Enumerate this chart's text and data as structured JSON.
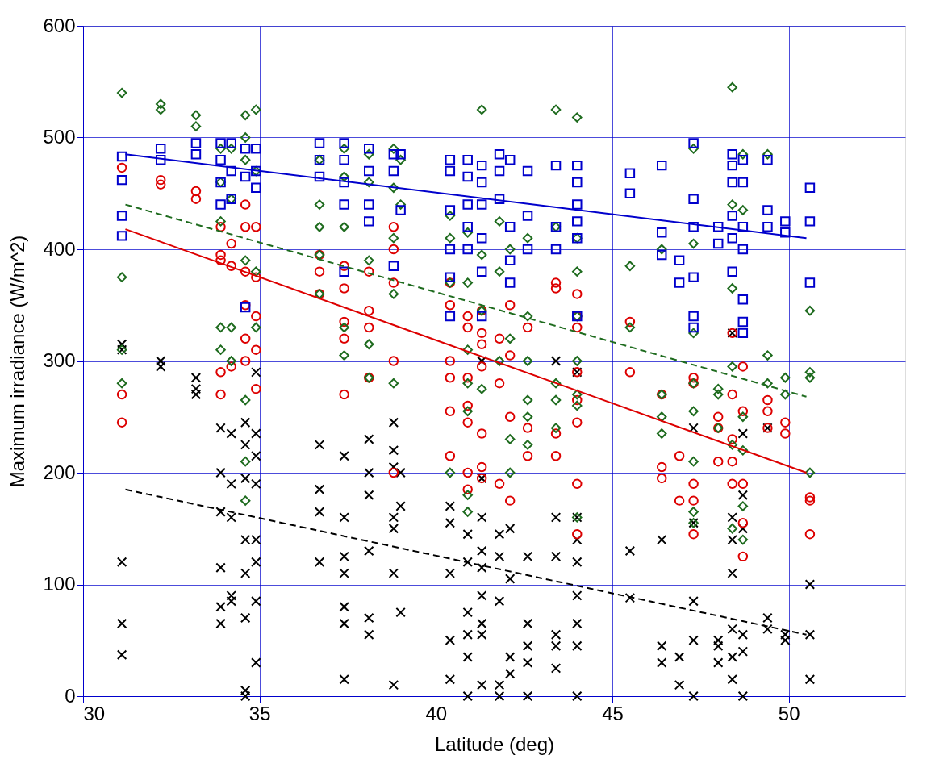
{
  "chart_data": {
    "type": "scatter",
    "xlabel": "Latitude (deg)",
    "ylabel": "Maximum irradiance (W/m^2)",
    "xlim": [
      30,
      53.3
    ],
    "xticks": [
      30,
      35,
      40,
      45,
      50
    ],
    "ylim": [
      0,
      600
    ],
    "yticks": [
      0,
      100,
      200,
      300,
      400,
      500,
      600
    ],
    "grid": true,
    "series": [
      {
        "color": "#0000cc",
        "marker": "square",
        "x": [
          31.1,
          31.1,
          31.1,
          31.1,
          32.2,
          32.2,
          33.2,
          33.2,
          33.9,
          33.9,
          33.9,
          33.9,
          34.2,
          34.2,
          34.2,
          34.6,
          34.6,
          34.6,
          34.9,
          34.9,
          34.9,
          36.7,
          36.7,
          36.7,
          37.4,
          37.4,
          37.4,
          37.4,
          37.4,
          38.1,
          38.1,
          38.1,
          38.1,
          38.8,
          38.8,
          38.8,
          39.0,
          39.0,
          40.4,
          40.4,
          40.4,
          40.4,
          40.4,
          40.4,
          40.9,
          40.9,
          40.9,
          40.9,
          40.9,
          41.3,
          41.3,
          41.3,
          41.3,
          41.3,
          41.3,
          41.8,
          41.8,
          41.8,
          42.1,
          42.1,
          42.1,
          42.1,
          42.6,
          42.6,
          42.6,
          43.4,
          43.4,
          43.4,
          44.0,
          44.0,
          44.0,
          44.0,
          44.0,
          44.0,
          45.5,
          45.5,
          46.4,
          46.4,
          46.4,
          46.9,
          46.9,
          47.3,
          47.3,
          47.3,
          47.3,
          47.3,
          47.3,
          48.0,
          48.0,
          48.4,
          48.4,
          48.4,
          48.4,
          48.4,
          48.4,
          48.7,
          48.7,
          48.7,
          48.7,
          48.7,
          48.7,
          48.7,
          49.4,
          49.4,
          49.4,
          49.9,
          49.9,
          50.6,
          50.6,
          50.6
        ],
        "values": [
          483,
          462,
          430,
          412,
          490,
          480,
          495,
          485,
          495,
          480,
          460,
          440,
          495,
          470,
          445,
          490,
          465,
          348,
          490,
          470,
          455,
          495,
          480,
          465,
          495,
          480,
          460,
          440,
          380,
          490,
          470,
          440,
          425,
          485,
          470,
          385,
          485,
          435,
          480,
          470,
          435,
          400,
          375,
          340,
          480,
          465,
          440,
          420,
          400,
          475,
          460,
          440,
          410,
          380,
          340,
          485,
          470,
          445,
          480,
          420,
          390,
          370,
          470,
          430,
          400,
          475,
          420,
          400,
          475,
          460,
          440,
          425,
          410,
          340,
          468,
          450,
          475,
          415,
          395,
          390,
          370,
          495,
          445,
          420,
          375,
          340,
          330,
          420,
          405,
          485,
          475,
          460,
          430,
          410,
          380,
          480,
          460,
          420,
          400,
          355,
          335,
          325,
          480,
          435,
          420,
          425,
          415,
          455,
          425,
          370
        ]
      },
      {
        "color": "#1e6b1e",
        "marker": "diamond",
        "x": [
          31.1,
          31.1,
          31.1,
          31.1,
          32.2,
          32.2,
          33.2,
          33.2,
          33.9,
          33.9,
          33.9,
          33.9,
          33.9,
          34.2,
          34.2,
          34.2,
          34.2,
          34.6,
          34.6,
          34.6,
          34.6,
          34.6,
          34.6,
          34.6,
          34.9,
          34.9,
          34.9,
          34.9,
          36.7,
          36.7,
          36.7,
          36.7,
          36.7,
          37.4,
          37.4,
          37.4,
          37.4,
          37.4,
          38.1,
          38.1,
          38.1,
          38.1,
          38.1,
          38.8,
          38.8,
          38.8,
          38.8,
          38.8,
          39.0,
          39.0,
          40.4,
          40.4,
          40.4,
          40.4,
          40.9,
          40.9,
          40.9,
          40.9,
          40.9,
          40.9,
          40.9,
          41.3,
          41.3,
          41.3,
          41.3,
          41.8,
          41.8,
          41.8,
          42.1,
          42.1,
          42.1,
          42.1,
          42.6,
          42.6,
          42.6,
          42.6,
          42.6,
          42.6,
          43.4,
          43.4,
          43.4,
          43.4,
          43.4,
          44.0,
          44.0,
          44.0,
          44.0,
          44.0,
          44.0,
          44.0,
          44.0,
          45.5,
          45.5,
          46.4,
          46.4,
          46.4,
          46.4,
          47.3,
          47.3,
          47.3,
          47.3,
          47.3,
          47.3,
          47.3,
          47.3,
          48.0,
          48.0,
          48.0,
          48.4,
          48.4,
          48.4,
          48.4,
          48.4,
          48.4,
          48.7,
          48.7,
          48.7,
          48.7,
          48.7,
          48.7,
          49.4,
          49.4,
          49.4,
          49.9,
          49.9,
          50.6,
          50.6,
          50.6,
          50.6
        ],
        "values": [
          540,
          375,
          310,
          280,
          530,
          525,
          520,
          510,
          490,
          460,
          425,
          330,
          310,
          490,
          445,
          330,
          300,
          520,
          500,
          480,
          390,
          265,
          210,
          175,
          525,
          470,
          380,
          330,
          480,
          440,
          420,
          395,
          360,
          490,
          465,
          420,
          330,
          305,
          485,
          460,
          390,
          315,
          285,
          490,
          455,
          410,
          360,
          280,
          480,
          440,
          430,
          410,
          370,
          200,
          415,
          370,
          310,
          280,
          255,
          180,
          165,
          525,
          395,
          345,
          275,
          425,
          380,
          300,
          400,
          320,
          230,
          200,
          410,
          340,
          300,
          265,
          250,
          225,
          525,
          420,
          280,
          265,
          240,
          518,
          410,
          380,
          340,
          300,
          270,
          260,
          160,
          385,
          330,
          400,
          270,
          250,
          235,
          490,
          405,
          325,
          280,
          255,
          210,
          165,
          155,
          275,
          270,
          240,
          545,
          440,
          365,
          295,
          225,
          150,
          485,
          435,
          250,
          220,
          170,
          140,
          485,
          305,
          280,
          285,
          270,
          345,
          290,
          285,
          200
        ]
      },
      {
        "color": "#dd0000",
        "marker": "circle",
        "x": [
          31.1,
          31.1,
          31.1,
          32.2,
          32.2,
          33.2,
          33.2,
          33.9,
          33.9,
          33.9,
          33.9,
          33.9,
          34.2,
          34.2,
          34.2,
          34.6,
          34.6,
          34.6,
          34.6,
          34.6,
          34.6,
          34.9,
          34.9,
          34.9,
          34.9,
          34.9,
          36.7,
          36.7,
          36.7,
          37.4,
          37.4,
          37.4,
          37.4,
          37.4,
          38.1,
          38.1,
          38.1,
          38.1,
          38.8,
          38.8,
          38.8,
          38.8,
          38.8,
          40.4,
          40.4,
          40.4,
          40.4,
          40.4,
          40.4,
          40.9,
          40.9,
          40.9,
          40.9,
          40.9,
          40.9,
          40.9,
          41.3,
          41.3,
          41.3,
          41.3,
          41.3,
          41.3,
          41.3,
          41.8,
          41.8,
          41.8,
          42.1,
          42.1,
          42.1,
          42.1,
          42.6,
          42.6,
          42.6,
          43.4,
          43.4,
          43.4,
          43.4,
          44.0,
          44.0,
          44.0,
          44.0,
          44.0,
          44.0,
          44.0,
          44.0,
          45.5,
          45.5,
          46.4,
          46.4,
          46.4,
          46.9,
          46.9,
          47.3,
          47.3,
          47.3,
          47.3,
          47.3,
          48.0,
          48.0,
          48.0,
          48.4,
          48.4,
          48.4,
          48.4,
          48.4,
          48.7,
          48.7,
          48.7,
          48.7,
          48.7,
          49.4,
          49.4,
          49.4,
          49.9,
          49.9,
          50.6,
          50.6,
          50.6
        ],
        "values": [
          473,
          270,
          245,
          462,
          458,
          452,
          445,
          420,
          395,
          390,
          290,
          270,
          405,
          385,
          295,
          440,
          420,
          380,
          350,
          320,
          300,
          420,
          375,
          340,
          310,
          275,
          395,
          380,
          360,
          385,
          365,
          335,
          320,
          270,
          380,
          345,
          330,
          285,
          420,
          400,
          370,
          300,
          200,
          370,
          350,
          300,
          285,
          255,
          215,
          340,
          330,
          285,
          260,
          245,
          200,
          185,
          345,
          325,
          315,
          295,
          235,
          205,
          195,
          320,
          280,
          190,
          350,
          305,
          250,
          175,
          330,
          240,
          215,
          370,
          365,
          235,
          215,
          360,
          340,
          330,
          290,
          265,
          245,
          190,
          145,
          335,
          290,
          270,
          205,
          195,
          215,
          175,
          285,
          280,
          190,
          175,
          145,
          250,
          240,
          210,
          325,
          270,
          230,
          210,
          190,
          295,
          255,
          190,
          155,
          125,
          265,
          255,
          240,
          245,
          235,
          178,
          175,
          145
        ]
      },
      {
        "color": "#000000",
        "marker": "cross",
        "x": [
          31.1,
          31.1,
          31.1,
          31.1,
          31.1,
          32.2,
          32.2,
          33.2,
          33.2,
          33.2,
          33.9,
          33.9,
          33.9,
          33.9,
          33.9,
          33.9,
          34.2,
          34.2,
          34.2,
          34.2,
          34.2,
          34.6,
          34.6,
          34.6,
          34.6,
          34.6,
          34.6,
          34.6,
          34.6,
          34.9,
          34.9,
          34.9,
          34.9,
          34.9,
          34.9,
          34.9,
          34.9,
          36.7,
          36.7,
          36.7,
          36.7,
          37.4,
          37.4,
          37.4,
          37.4,
          37.4,
          37.4,
          37.4,
          38.1,
          38.1,
          38.1,
          38.1,
          38.1,
          38.1,
          38.8,
          38.8,
          38.8,
          38.8,
          38.8,
          38.8,
          38.8,
          39.0,
          39.0,
          39.0,
          40.4,
          40.4,
          40.4,
          40.4,
          40.4,
          40.9,
          40.9,
          40.9,
          40.9,
          40.9,
          40.9,
          41.3,
          41.3,
          41.3,
          41.3,
          41.3,
          41.3,
          41.3,
          41.3,
          41.3,
          41.8,
          41.8,
          41.8,
          41.8,
          41.8,
          42.1,
          42.1,
          42.1,
          42.1,
          42.6,
          42.6,
          42.6,
          42.6,
          42.6,
          43.4,
          43.4,
          43.4,
          43.4,
          43.4,
          43.4,
          44.0,
          44.0,
          44.0,
          44.0,
          44.0,
          44.0,
          44.0,
          44.0,
          45.5,
          45.5,
          46.4,
          46.4,
          46.4,
          46.9,
          46.9,
          47.3,
          47.3,
          47.3,
          47.3,
          47.3,
          48.0,
          48.0,
          48.0,
          48.4,
          48.4,
          48.4,
          48.4,
          48.4,
          48.4,
          48.4,
          48.7,
          48.7,
          48.7,
          48.7,
          48.7,
          48.7,
          49.4,
          49.4,
          49.4,
          49.9,
          49.9,
          50.6,
          50.6,
          50.6
        ],
        "values": [
          315,
          310,
          120,
          65,
          37,
          300,
          295,
          285,
          275,
          270,
          240,
          200,
          165,
          115,
          80,
          65,
          235,
          190,
          160,
          90,
          85,
          245,
          225,
          195,
          140,
          110,
          70,
          5,
          0,
          290,
          235,
          215,
          190,
          140,
          120,
          85,
          30,
          225,
          185,
          165,
          120,
          215,
          160,
          125,
          110,
          80,
          65,
          15,
          230,
          200,
          180,
          130,
          70,
          55,
          245,
          220,
          205,
          160,
          150,
          110,
          10,
          200,
          170,
          75,
          170,
          155,
          110,
          50,
          15,
          145,
          120,
          75,
          55,
          35,
          0,
          300,
          195,
          160,
          130,
          115,
          90,
          65,
          55,
          10,
          145,
          125,
          85,
          10,
          0,
          150,
          105,
          35,
          20,
          125,
          65,
          45,
          30,
          0,
          300,
          160,
          125,
          55,
          45,
          25,
          290,
          160,
          140,
          120,
          90,
          65,
          45,
          0,
          130,
          88,
          140,
          45,
          30,
          35,
          10,
          240,
          155,
          85,
          50,
          0,
          50,
          45,
          30,
          325,
          160,
          140,
          110,
          60,
          35,
          15,
          235,
          180,
          150,
          55,
          40,
          0,
          240,
          70,
          60,
          55,
          50,
          100,
          55,
          15
        ]
      },
      {
        "type": "line",
        "color": "#0000cc",
        "marker": "none",
        "line_style": "solid",
        "x": [
          31.2,
          50.5
        ],
        "values": [
          485,
          410
        ]
      },
      {
        "type": "line",
        "color": "#1e6b1e",
        "marker": "none",
        "line_style": "dashed",
        "x": [
          31.2,
          50.5
        ],
        "values": [
          440,
          268
        ]
      },
      {
        "type": "line",
        "color": "#dd0000",
        "marker": "none",
        "line_style": "solid",
        "x": [
          31.2,
          50.5
        ],
        "values": [
          418,
          200
        ]
      },
      {
        "type": "line",
        "color": "#000000",
        "marker": "none",
        "line_style": "dashed",
        "x": [
          31.2,
          50.5
        ],
        "values": [
          185,
          55
        ]
      }
    ]
  }
}
